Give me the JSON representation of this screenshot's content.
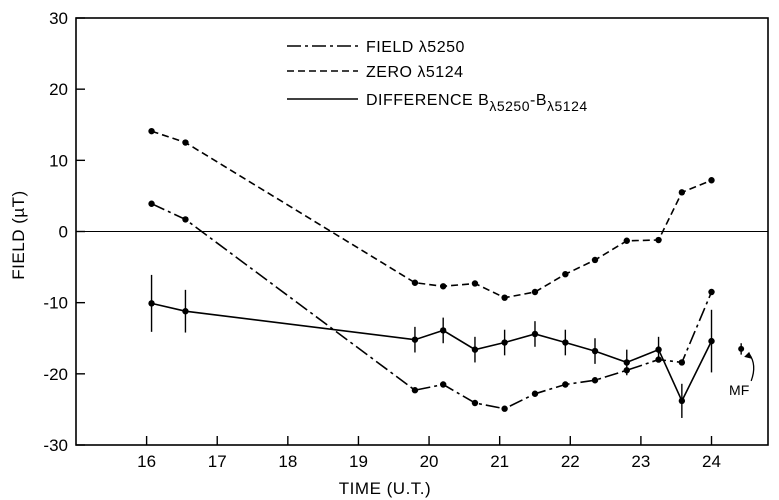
{
  "chart_data": {
    "type": "line",
    "xlabel": "TIME (U.T.)",
    "ylabel": "FIELD (µT)",
    "xlim": [
      15,
      24.8
    ],
    "ylim": [
      -30,
      30
    ],
    "x_ticks": [
      16,
      17,
      18,
      19,
      20,
      21,
      22,
      23,
      24
    ],
    "y_ticks": [
      -30,
      -20,
      -10,
      0,
      10,
      20,
      30
    ],
    "zero_line": true,
    "legend_position": "top",
    "series": [
      {
        "name": "FIELD λ5250",
        "style": "dash-dot",
        "points": [
          [
            16.07,
            3.9
          ],
          [
            16.55,
            1.7
          ],
          [
            19.8,
            -22.3
          ],
          [
            20.2,
            -21.5
          ],
          [
            20.65,
            -24.1
          ],
          [
            21.07,
            -24.9
          ],
          [
            21.5,
            -22.8
          ],
          [
            21.93,
            -21.5
          ],
          [
            22.35,
            -20.9
          ],
          [
            22.8,
            -19.5
          ],
          [
            23.25,
            -18.0
          ],
          [
            23.58,
            -18.4
          ],
          [
            24.0,
            -8.5
          ]
        ]
      },
      {
        "name": "ZERO λ5124",
        "style": "dashed",
        "points": [
          [
            16.07,
            14.1
          ],
          [
            16.55,
            12.5
          ],
          [
            19.8,
            -7.2
          ],
          [
            20.2,
            -7.7
          ],
          [
            20.65,
            -7.3
          ],
          [
            21.07,
            -9.3
          ],
          [
            21.5,
            -8.5
          ],
          [
            21.93,
            -6.0
          ],
          [
            22.35,
            -4.0
          ],
          [
            22.8,
            -1.3
          ],
          [
            23.25,
            -1.2
          ],
          [
            23.58,
            5.5
          ],
          [
            24.0,
            7.2
          ]
        ]
      },
      {
        "name": "DIFFERENCE B",
        "name_sub1": "λ5250",
        "name_mid": "-B",
        "name_sub2": "λ5124",
        "style": "solid",
        "points": [
          [
            16.07,
            -10.1
          ],
          [
            16.55,
            -11.2
          ],
          [
            19.8,
            -15.2
          ],
          [
            20.2,
            -13.9
          ],
          [
            20.65,
            -16.6
          ],
          [
            21.07,
            -15.6
          ],
          [
            21.5,
            -14.4
          ],
          [
            21.93,
            -15.6
          ],
          [
            22.35,
            -16.8
          ],
          [
            22.8,
            -18.4
          ],
          [
            23.25,
            -16.6
          ],
          [
            23.58,
            -23.8
          ],
          [
            24.0,
            -15.4
          ]
        ],
        "errors": [
          4.0,
          3.0,
          1.8,
          1.8,
          1.8,
          1.8,
          1.8,
          1.8,
          1.8,
          1.8,
          1.8,
          2.4,
          4.4
        ]
      }
    ],
    "annotation": {
      "text": "MF",
      "point": [
        24.42,
        -16.5
      ],
      "error": 0.8
    }
  }
}
